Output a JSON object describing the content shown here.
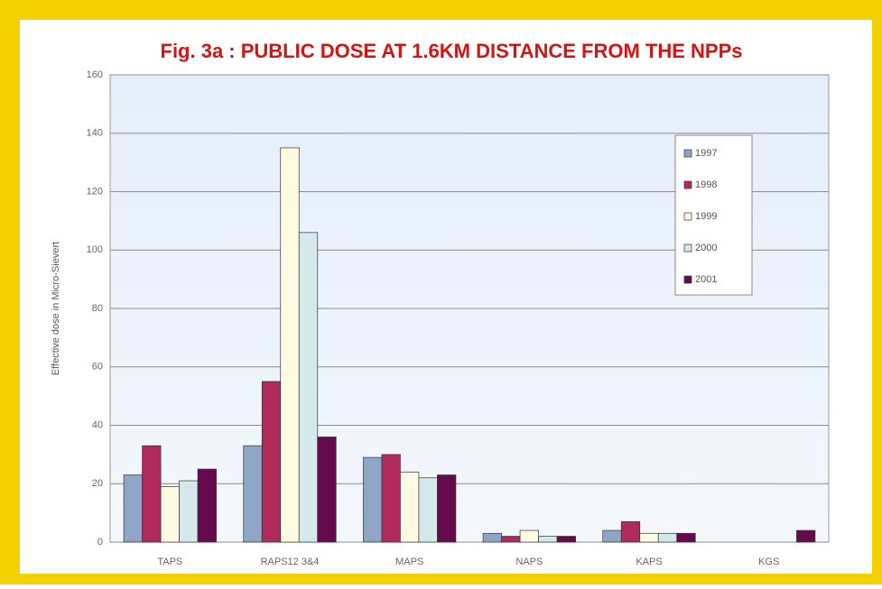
{
  "chart_data": {
    "type": "bar",
    "title": "Fig. 3a : PUBLIC DOSE AT 1.6KM DISTANCE FROM THE NPPs",
    "y_label": "Effective dose in Micro-Sievert",
    "categories": [
      "TAPS",
      "RAPS12 3&4",
      "MAPS",
      "NAPS",
      "KAPS",
      "KGS"
    ],
    "series": [
      {
        "name": "1997",
        "color": "#8fa6c9",
        "values": [
          23,
          33,
          29,
          3,
          4,
          0
        ]
      },
      {
        "name": "1998",
        "color": "#b02a5c",
        "values": [
          33,
          55,
          30,
          2,
          7,
          0
        ]
      },
      {
        "name": "1999",
        "color": "#fffbe2",
        "values": [
          19,
          135,
          24,
          4,
          3,
          0
        ]
      },
      {
        "name": "2000",
        "color": "#d6e9ea",
        "values": [
          21,
          106,
          22,
          2,
          3,
          0
        ]
      },
      {
        "name": "2001",
        "color": "#660a4e",
        "values": [
          25,
          36,
          23,
          2,
          3,
          4
        ]
      }
    ],
    "ylim": [
      0,
      160
    ],
    "yticks": [
      0,
      20,
      40,
      60,
      80,
      100,
      120,
      140,
      160
    ],
    "grid": true,
    "legend": "upper right"
  }
}
